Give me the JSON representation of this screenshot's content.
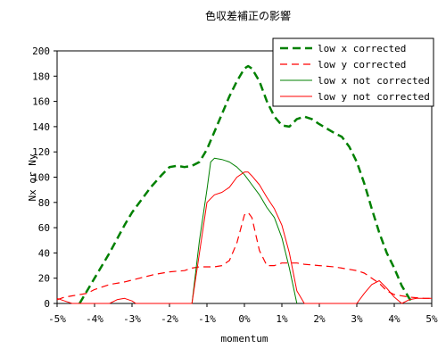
{
  "chart_data": {
    "type": "line",
    "title": "色収差補正の影響",
    "xlabel": "momentum",
    "ylabel": "Nx or Ny",
    "xlim": [
      -5,
      5
    ],
    "ylim": [
      0,
      200
    ],
    "x_ticks": [
      -5,
      -4,
      -3,
      -2,
      -1,
      0,
      1,
      2,
      3,
      4,
      5
    ],
    "x_tick_labels": [
      "-5%",
      "-4%",
      "-3%",
      "-2%",
      "-1%",
      "0%",
      "1%",
      "2%",
      "3%",
      "4%",
      "5%"
    ],
    "y_ticks": [
      0,
      20,
      40,
      60,
      80,
      100,
      120,
      140,
      160,
      180,
      200
    ],
    "y_tick_labels": [
      "0",
      "20",
      "40",
      "60",
      "80",
      "100",
      "120",
      "140",
      "160",
      "180",
      "200"
    ],
    "grid": false,
    "legend_position": "top-right",
    "series": [
      {
        "name": "low x  corrected",
        "color": "#008000",
        "style": "dashed-bold",
        "points": [
          [
            -4.4,
            0
          ],
          [
            -4.0,
            20
          ],
          [
            -3.6,
            40
          ],
          [
            -3.2,
            62
          ],
          [
            -3.0,
            72
          ],
          [
            -2.8,
            80
          ],
          [
            -2.5,
            92
          ],
          [
            -2.2,
            102
          ],
          [
            -2.0,
            108
          ],
          [
            -1.8,
            109
          ],
          [
            -1.6,
            108
          ],
          [
            -1.4,
            109
          ],
          [
            -1.2,
            112
          ],
          [
            -1.0,
            122
          ],
          [
            -0.8,
            136
          ],
          [
            -0.6,
            150
          ],
          [
            -0.4,
            164
          ],
          [
            -0.2,
            176
          ],
          [
            0.0,
            186
          ],
          [
            0.1,
            188
          ],
          [
            0.2,
            186
          ],
          [
            0.4,
            176
          ],
          [
            0.6,
            160
          ],
          [
            0.8,
            148
          ],
          [
            1.0,
            141
          ],
          [
            1.2,
            140
          ],
          [
            1.4,
            146
          ],
          [
            1.6,
            148
          ],
          [
            1.8,
            146
          ],
          [
            2.0,
            142
          ],
          [
            2.4,
            135
          ],
          [
            2.6,
            132
          ],
          [
            2.8,
            124
          ],
          [
            3.0,
            112
          ],
          [
            3.2,
            95
          ],
          [
            3.4,
            75
          ],
          [
            3.6,
            56
          ],
          [
            3.8,
            40
          ],
          [
            4.0,
            28
          ],
          [
            4.2,
            14
          ],
          [
            4.4,
            4
          ],
          [
            4.5,
            0
          ]
        ]
      },
      {
        "name": "low y corrected",
        "color": "#ff0000",
        "style": "dashed",
        "points": [
          [
            -5.0,
            3
          ],
          [
            -4.8,
            5
          ],
          [
            -4.6,
            6
          ],
          [
            -4.2,
            8
          ],
          [
            -4.0,
            11
          ],
          [
            -3.6,
            15
          ],
          [
            -3.2,
            17
          ],
          [
            -2.8,
            20
          ],
          [
            -2.4,
            23
          ],
          [
            -2.0,
            25
          ],
          [
            -1.6,
            26
          ],
          [
            -1.4,
            28
          ],
          [
            -1.2,
            29
          ],
          [
            -1.0,
            29
          ],
          [
            -0.8,
            29
          ],
          [
            -0.6,
            30
          ],
          [
            -0.4,
            34
          ],
          [
            -0.2,
            48
          ],
          [
            0.0,
            70
          ],
          [
            0.1,
            72
          ],
          [
            0.2,
            68
          ],
          [
            0.4,
            42
          ],
          [
            0.6,
            30
          ],
          [
            0.8,
            30
          ],
          [
            1.0,
            32
          ],
          [
            1.4,
            32
          ],
          [
            1.6,
            31
          ],
          [
            2.0,
            30
          ],
          [
            2.4,
            29
          ],
          [
            2.8,
            27
          ],
          [
            3.0,
            26
          ],
          [
            3.2,
            24
          ],
          [
            3.4,
            20
          ],
          [
            3.6,
            16
          ],
          [
            3.8,
            10
          ],
          [
            4.0,
            7
          ],
          [
            4.4,
            5
          ],
          [
            4.8,
            4
          ],
          [
            5.0,
            4
          ]
        ]
      },
      {
        "name": "low x  not corrected",
        "color": "#008000",
        "style": "solid",
        "points": [
          [
            -1.4,
            0
          ],
          [
            -1.2,
            50
          ],
          [
            -1.0,
            90
          ],
          [
            -0.9,
            112
          ],
          [
            -0.8,
            115
          ],
          [
            -0.6,
            114
          ],
          [
            -0.4,
            112
          ],
          [
            -0.2,
            108
          ],
          [
            0.0,
            102
          ],
          [
            0.2,
            94
          ],
          [
            0.4,
            86
          ],
          [
            0.6,
            76
          ],
          [
            0.8,
            68
          ],
          [
            1.0,
            52
          ],
          [
            1.2,
            28
          ],
          [
            1.4,
            0
          ]
        ]
      },
      {
        "name": "low y not corrected",
        "color": "#ff0000",
        "style": "solid",
        "points": [
          [
            -5.0,
            4
          ],
          [
            -4.8,
            2
          ],
          [
            -4.6,
            0
          ],
          [
            -3.6,
            0
          ],
          [
            -3.4,
            3
          ],
          [
            -3.2,
            4
          ],
          [
            -3.0,
            2
          ],
          [
            -2.9,
            0
          ],
          [
            -1.4,
            0
          ],
          [
            -1.2,
            40
          ],
          [
            -1.0,
            80
          ],
          [
            -0.8,
            86
          ],
          [
            -0.6,
            88
          ],
          [
            -0.4,
            92
          ],
          [
            -0.2,
            100
          ],
          [
            0.0,
            104
          ],
          [
            0.1,
            104
          ],
          [
            0.2,
            101
          ],
          [
            0.4,
            94
          ],
          [
            0.6,
            84
          ],
          [
            0.8,
            75
          ],
          [
            1.0,
            62
          ],
          [
            1.2,
            40
          ],
          [
            1.4,
            10
          ],
          [
            1.6,
            0
          ],
          [
            3.0,
            0
          ],
          [
            3.2,
            8
          ],
          [
            3.4,
            15
          ],
          [
            3.6,
            18
          ],
          [
            3.8,
            12
          ],
          [
            4.0,
            5
          ],
          [
            4.2,
            0
          ],
          [
            4.4,
            3
          ],
          [
            4.6,
            4
          ],
          [
            5.0,
            4
          ]
        ]
      }
    ]
  }
}
